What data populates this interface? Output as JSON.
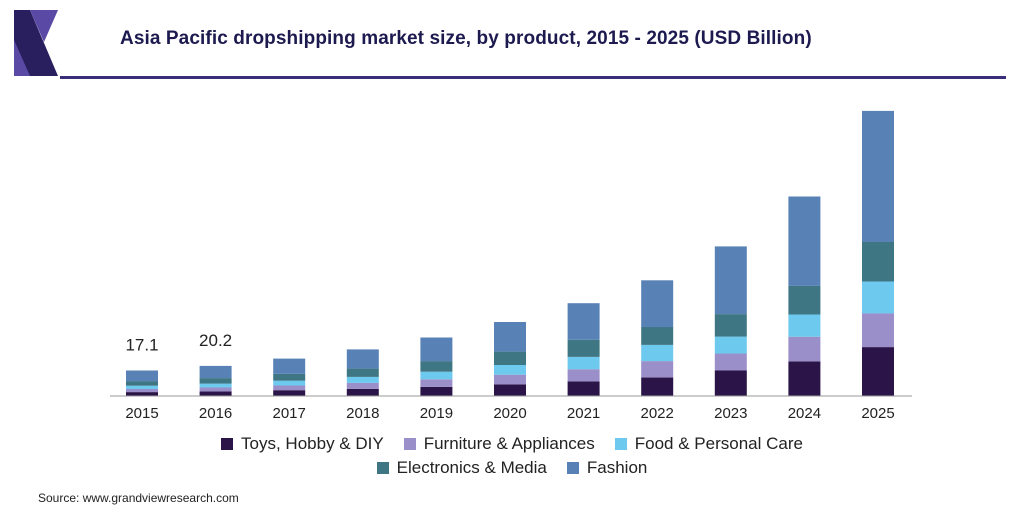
{
  "header": {
    "title": "Asia Pacific dropshipping market size, by product, 2015 - 2025 (USD Billion)"
  },
  "footer": {
    "source": "Source: www.grandviewresearch.com"
  },
  "colors": {
    "title": "#1c1a4f",
    "rule": "#3a2d7a",
    "logo_dark": "#2a1f5e",
    "logo_mid": "#5a4aa6"
  },
  "chart_data": {
    "type": "bar",
    "stacked": true,
    "title": "Asia Pacific dropshipping market size, by product, 2015 - 2025 (USD Billion)",
    "xlabel": "",
    "ylabel": "",
    "categories": [
      "2015",
      "2016",
      "2017",
      "2018",
      "2019",
      "2020",
      "2021",
      "2022",
      "2023",
      "2024",
      "2025"
    ],
    "series": [
      {
        "name": "Toys, Hobby & DIY",
        "color": "#2b1548",
        "values": [
          2.6,
          3.1,
          3.9,
          4.8,
          6.1,
          7.8,
          9.8,
          12.5,
          17.1,
          23.2,
          32.8
        ]
      },
      {
        "name": "Furniture & Appliances",
        "color": "#9b8fc9",
        "values": [
          2.1,
          2.6,
          3.2,
          4.0,
          5.1,
          6.5,
          8.2,
          10.9,
          11.4,
          16.6,
          22.7
        ]
      },
      {
        "name": "Food & Personal Care",
        "color": "#6ec9ef",
        "values": [
          2.2,
          2.6,
          3.2,
          4.0,
          5.1,
          6.5,
          8.2,
          10.9,
          11.4,
          14.9,
          21.4
        ]
      },
      {
        "name": "Electronics & Media",
        "color": "#3f7683",
        "values": [
          3.1,
          3.7,
          4.5,
          5.6,
          7.1,
          9.0,
          11.5,
          12.0,
          15.1,
          19.2,
          26.5
        ]
      },
      {
        "name": "Fashion",
        "color": "#5881b5",
        "values": [
          7.1,
          8.2,
          10.3,
          12.9,
          15.9,
          19.9,
          24.6,
          31.4,
          45.4,
          60.0,
          88.0
        ]
      }
    ],
    "totals_labels": [
      {
        "category": "2015",
        "text": "17.1"
      },
      {
        "category": "2016",
        "text": "20.2"
      }
    ],
    "ylim": [
      0,
      192
    ],
    "grid": false,
    "legend_position": "bottom"
  }
}
